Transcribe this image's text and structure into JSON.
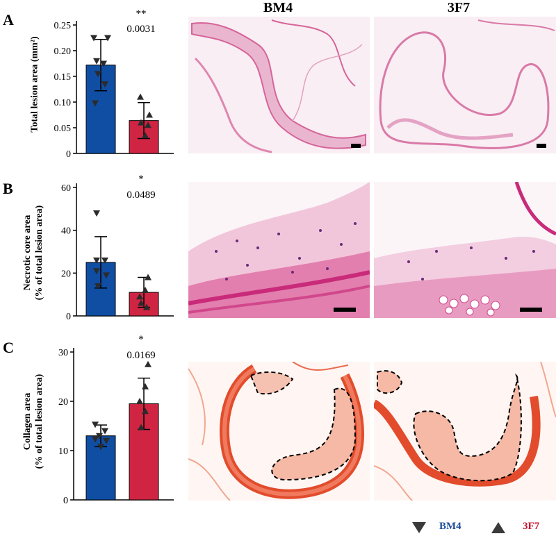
{
  "column_headers": [
    "BM4",
    "3F7"
  ],
  "legend": [
    {
      "label": "BM4",
      "marker": "down-triangle",
      "color": "#1f4e9c"
    },
    {
      "label": "3F7",
      "marker": "up-triangle",
      "color": "#c8102e"
    }
  ],
  "colors": {
    "bm4": "#0f4ea3",
    "f3f7": "#d02443",
    "he_stain": "#e58ab4",
    "sirius_red": "#e5553a"
  },
  "chart_data": [
    {
      "panel": "A",
      "type": "bar",
      "ylabel_line1": "Total lesion area (mm²)",
      "ylabel_line2": "",
      "yticks": [
        "0",
        "0.05",
        "0.10",
        "0.15",
        "0.20",
        "0.25"
      ],
      "ylim": [
        0,
        0.25
      ],
      "categories": [
        "BM4",
        "3F7"
      ],
      "values": [
        0.172,
        0.064
      ],
      "errors": [
        0.05,
        0.035
      ],
      "points": [
        [
          0.225,
          0.225,
          0.18,
          0.175,
          0.155,
          0.135,
          0.098
        ],
        [
          0.11,
          0.075,
          0.06,
          0.055,
          0.035
        ]
      ],
      "significance": "**",
      "p_value": "0.0031"
    },
    {
      "panel": "B",
      "type": "bar",
      "ylabel_line1": "Necrotic core area",
      "ylabel_line2": "(% of total lesion area)",
      "yticks": [
        "0",
        "20",
        "40",
        "60"
      ],
      "ylim": [
        0,
        60
      ],
      "categories": [
        "BM4",
        "3F7"
      ],
      "values": [
        25,
        11
      ],
      "errors": [
        12,
        7
      ],
      "points": [
        [
          48,
          26,
          26,
          21,
          19,
          14
        ],
        [
          18,
          12,
          9,
          6,
          4
        ]
      ],
      "significance": "*",
      "p_value": "0.0489"
    },
    {
      "panel": "C",
      "type": "bar",
      "ylabel_line1": "Collagen area",
      "ylabel_line2": "(% of total lesion area)",
      "yticks": [
        "0",
        "10",
        "20",
        "30"
      ],
      "ylim": [
        0,
        30
      ],
      "categories": [
        "BM4",
        "3F7"
      ],
      "values": [
        13,
        19.5
      ],
      "errors": [
        2.2,
        5.2
      ],
      "points": [
        [
          15.3,
          14,
          13,
          12.3,
          12,
          10.8
        ],
        [
          27.5,
          23,
          20,
          18,
          14.7
        ]
      ],
      "significance": "*",
      "p_value": "0.0169"
    }
  ]
}
